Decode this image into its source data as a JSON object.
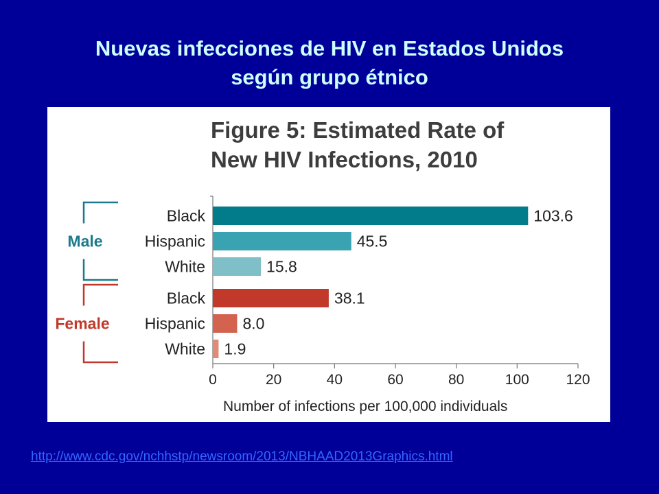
{
  "slide": {
    "title_line1": "Nuevas infecciones de HIV en Estados Unidos",
    "title_line2": "según grupo étnico",
    "source_url": "http://www.cdc.gov/nchhstp/newsroom/2013/NBHAAD2013Graphics.html"
  },
  "colors": {
    "background": "#000099",
    "title": "#ccffff",
    "link": "#3366ff",
    "male_group": "#1a7a8c",
    "female_group": "#c0392b"
  },
  "chart_data": {
    "type": "bar",
    "orientation": "horizontal",
    "title_line1": "Figure 5: Estimated Rate of",
    "title_line2": "New HIV Infections, 2010",
    "xlabel": "Number of infections per 100,000 individuals",
    "xlim": [
      0,
      120
    ],
    "xticks": [
      "0",
      "20",
      "40",
      "60",
      "80",
      "100",
      "120"
    ],
    "grid": false,
    "groups": [
      {
        "name": "Male",
        "color": "#1a7a8c",
        "bars": [
          {
            "category": "Black",
            "value": 103.6,
            "label": "103.6",
            "color": "#027b8a"
          },
          {
            "category": "Hispanic",
            "value": 45.5,
            "label": "45.5",
            "color": "#3aa3b1"
          },
          {
            "category": "White",
            "value": 15.8,
            "label": "15.8",
            "color": "#7fc0c8"
          }
        ]
      },
      {
        "name": "Female",
        "color": "#c0392b",
        "bars": [
          {
            "category": "Black",
            "value": 38.1,
            "label": "38.1",
            "color": "#c0392b"
          },
          {
            "category": "Hispanic",
            "value": 8.0,
            "label": "8.0",
            "color": "#d3624f"
          },
          {
            "category": "White",
            "value": 1.9,
            "label": "1.9",
            "color": "#e08a78"
          }
        ]
      }
    ]
  }
}
